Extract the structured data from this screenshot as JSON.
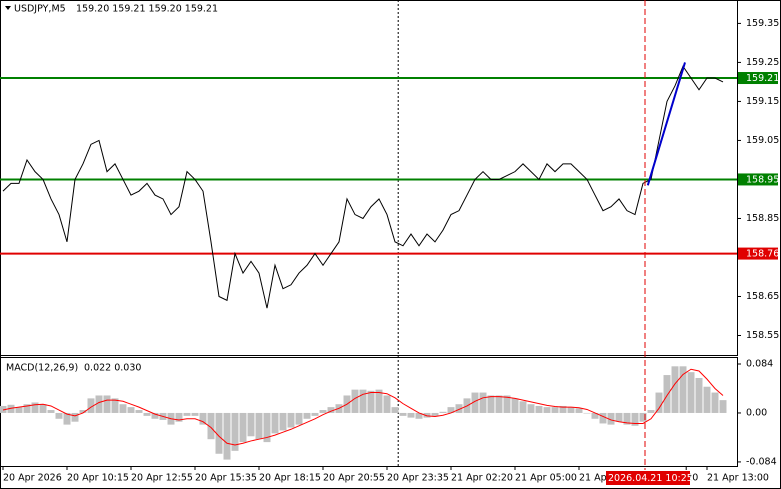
{
  "chart_data": [
    {
      "type": "line",
      "title": "USDJPY,M5",
      "header_values": "159.20 159.21 159.20 159.21",
      "color": "#000000",
      "values": [
        158.92,
        158.94,
        158.94,
        159.0,
        158.97,
        158.95,
        158.9,
        158.86,
        158.79,
        158.95,
        158.99,
        159.04,
        159.05,
        158.97,
        158.99,
        158.95,
        158.91,
        158.92,
        158.94,
        158.91,
        158.9,
        158.86,
        158.88,
        158.97,
        158.95,
        158.92,
        158.79,
        158.65,
        158.64,
        158.76,
        158.71,
        158.74,
        158.71,
        158.62,
        158.73,
        158.67,
        158.68,
        158.71,
        158.73,
        158.76,
        158.73,
        158.76,
        158.79,
        158.9,
        158.86,
        158.85,
        158.88,
        158.9,
        158.86,
        158.79,
        158.78,
        158.81,
        158.78,
        158.81,
        158.79,
        158.82,
        158.86,
        158.87,
        158.91,
        158.95,
        158.97,
        158.95,
        158.95,
        158.96,
        158.97,
        158.99,
        158.97,
        158.95,
        158.99,
        158.97,
        158.99,
        158.99,
        158.97,
        158.95,
        158.91,
        158.87,
        158.88,
        158.9,
        158.87,
        158.86,
        158.94,
        158.95,
        159.05,
        159.15,
        159.19,
        159.24,
        159.21,
        159.18,
        159.21,
        159.21,
        159.2
      ],
      "ylim": [
        158.5,
        159.41
      ],
      "yticks": [
        159.35,
        159.25,
        159.15,
        159.05,
        158.85,
        158.65,
        158.55
      ],
      "levels": [
        {
          "value": 159.21,
          "color": "#008000"
        },
        {
          "value": 158.95,
          "color": "#008000"
        },
        {
          "value": 158.76,
          "color": "#e00000"
        }
      ],
      "trendline": {
        "x": [
          80.6,
          85.25
        ],
        "y": [
          158.935,
          159.25
        ],
        "color": "#0000cc"
      },
      "vlines": [
        {
          "x": 49.4,
          "color": "#000000",
          "style": "dotted"
        }
      ]
    },
    {
      "type": "macd",
      "title": "MACD(12,26,9)",
      "header_values": "0.022 0.030",
      "series": [
        {
          "color": "#c0c0c0",
          "values": [
            0.012,
            0.014,
            0.01,
            0.015,
            0.018,
            0.015,
            0.005,
            -0.01,
            -0.02,
            -0.015,
            0.005,
            0.025,
            0.03,
            0.03,
            0.025,
            0.015,
            0.01,
            0.005,
            -0.005,
            -0.01,
            -0.012,
            -0.02,
            -0.015,
            -0.005,
            -0.005,
            -0.02,
            -0.045,
            -0.07,
            -0.08,
            -0.065,
            -0.05,
            -0.04,
            -0.045,
            -0.05,
            -0.035,
            -0.03,
            -0.025,
            -0.02,
            -0.01,
            -0.005,
            0.005,
            0.01,
            0.015,
            0.03,
            0.04,
            0.04,
            0.038,
            0.04,
            0.03,
            0.01,
            -0.005,
            -0.008,
            -0.01,
            -0.008,
            -0.005,
            0.002,
            0.01,
            0.015,
            0.025,
            0.035,
            0.035,
            0.03,
            0.03,
            0.03,
            0.025,
            0.02,
            0.015,
            0.012,
            0.01,
            0.01,
            0.012,
            0.01,
            0.008,
            0.0,
            -0.01,
            -0.018,
            -0.02,
            -0.015,
            -0.02,
            -0.022,
            -0.015,
            0.005,
            0.035,
            0.065,
            0.08,
            0.08,
            0.07,
            0.06,
            0.045,
            0.035,
            0.022
          ]
        },
        {
          "color": "#ff0000",
          "values": [
            0.005,
            0.008,
            0.01,
            0.012,
            0.014,
            0.015,
            0.012,
            0.005,
            -0.002,
            -0.005,
            0.0,
            0.01,
            0.018,
            0.022,
            0.022,
            0.02,
            0.015,
            0.01,
            0.004,
            -0.002,
            -0.006,
            -0.01,
            -0.012,
            -0.01,
            -0.01,
            -0.015,
            -0.025,
            -0.04,
            -0.052,
            -0.055,
            -0.052,
            -0.048,
            -0.045,
            -0.042,
            -0.038,
            -0.033,
            -0.028,
            -0.022,
            -0.016,
            -0.01,
            -0.003,
            0.003,
            0.008,
            0.015,
            0.025,
            0.032,
            0.035,
            0.035,
            0.033,
            0.026,
            0.016,
            0.008,
            0.0,
            -0.005,
            -0.006,
            -0.004,
            0.0,
            0.006,
            0.012,
            0.02,
            0.026,
            0.028,
            0.028,
            0.027,
            0.025,
            0.022,
            0.019,
            0.016,
            0.013,
            0.011,
            0.01,
            0.01,
            0.009,
            0.006,
            0.0,
            -0.006,
            -0.012,
            -0.015,
            -0.017,
            -0.018,
            -0.018,
            -0.01,
            0.008,
            0.03,
            0.05,
            0.066,
            0.075,
            0.072,
            0.058,
            0.042,
            0.03
          ]
        }
      ],
      "ylim": [
        -0.091,
        0.096
      ],
      "yticks": [
        0.084,
        {
          "value": 0,
          "label": "0.00"
        },
        -0.084
      ],
      "xticks": [
        {
          "value": 0,
          "label": "20 Apr 2026"
        },
        {
          "value": 8,
          "label": "20 Apr 10:15"
        },
        {
          "value": 16,
          "label": "20 Apr 12:55"
        },
        {
          "value": 24,
          "label": "20 Apr 15:35"
        },
        {
          "value": 32,
          "label": "20 Apr 18:15"
        },
        {
          "value": 40,
          "label": "20 Apr 20:55"
        },
        {
          "value": 48,
          "label": "20 Apr 23:35"
        },
        {
          "value": 56,
          "label": "21 Apr 02:20"
        },
        {
          "value": 64,
          "label": "21 Apr 05:00"
        },
        {
          "value": 72,
          "label": "21 Apr"
        },
        {
          "value": 85.4,
          "label": "20"
        },
        {
          "value": 88,
          "label": "21 Apr 13:00"
        }
      ],
      "cursor": {
        "x": 80.25,
        "label": "2026.04.21 10:25",
        "color": "#e00000"
      }
    }
  ]
}
